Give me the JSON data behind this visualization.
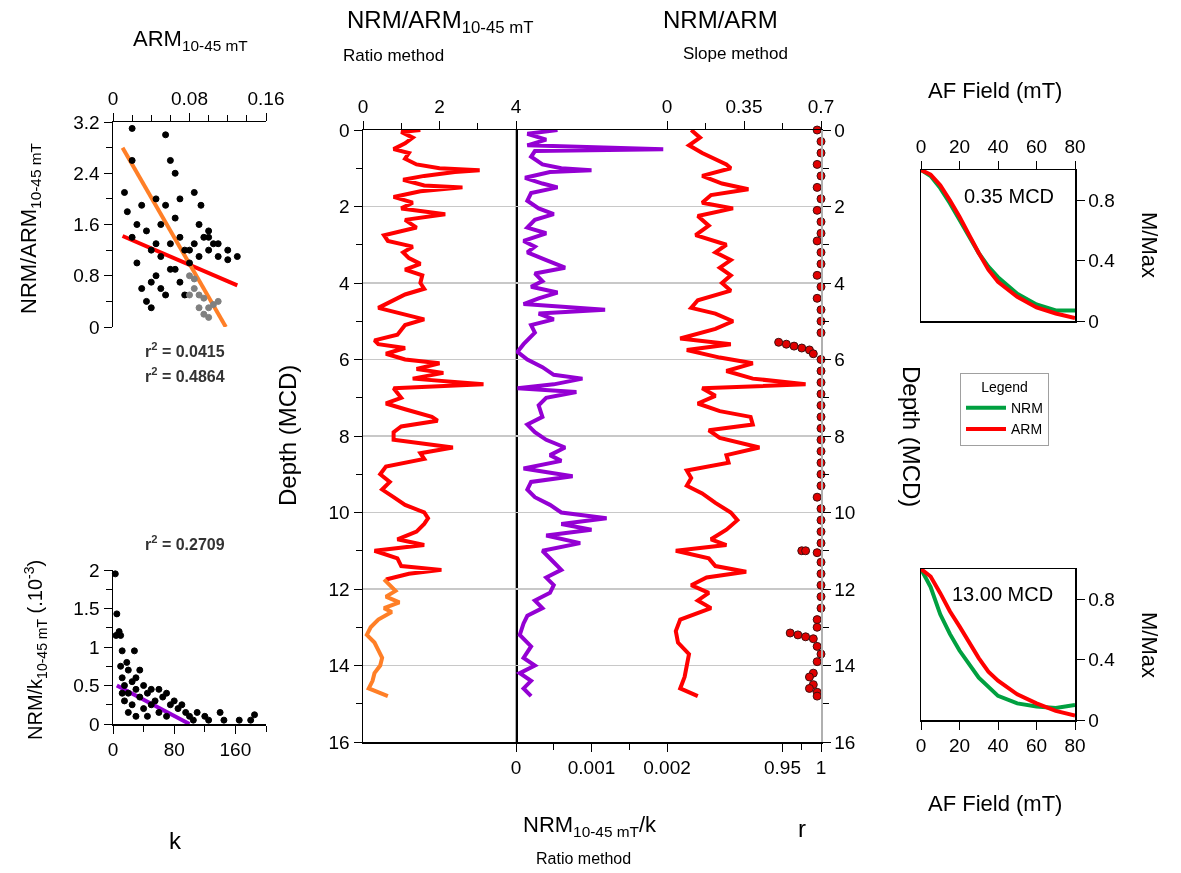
{
  "chart_data": [
    {
      "type": "scatter",
      "xlabel": "ARM$_{10-45 mT}$",
      "ylabel": "NRM/ARM$_{10-45 mT}$",
      "xlim": [
        0,
        0.16
      ],
      "xticks": [
        0,
        {
          "value": 0.02,
          "label": null
        },
        {
          "value": 0.04,
          "label": null
        },
        {
          "value": 0.06,
          "label": null
        },
        0.08,
        {
          "value": 0.1,
          "label": null
        },
        {
          "value": 0.12,
          "label": null
        },
        {
          "value": 0.14,
          "label": null
        },
        0.16
      ],
      "ylim": [
        0,
        3.2
      ],
      "yticks": [
        0,
        {
          "value": 0.4,
          "label": null
        },
        0.8,
        {
          "value": 1.2,
          "label": null
        },
        1.6,
        {
          "value": 2,
          "label": null
        },
        2.4,
        {
          "value": 2.8,
          "label": null
        },
        3.2
      ],
      "annotations": [
        "r$^{2}$ = 0.0415",
        "r$^{2}$ = 0.4864"
      ],
      "series": [
        {
          "marker": "circle",
          "color": "#000000",
          "x": [
            0.012,
            0.015,
            0.02,
            0.02,
            0.025,
            0.03,
            0.035,
            0.04,
            0.04,
            0.045,
            0.045,
            0.05,
            0.05,
            0.055,
            0.055,
            0.06,
            0.06,
            0.065,
            0.065,
            0.07,
            0.07,
            0.07,
            0.075,
            0.075,
            0.08,
            0.085,
            0.09,
            0.09,
            0.095,
            0.1,
            0.1,
            0.105,
            0.11,
            0.12,
            0.13,
            0.085,
            0.02,
            0.03,
            0.035,
            0.04,
            0.06,
            0.05,
            0.065,
            0.055,
            0.08,
            0.092,
            0.1,
            0.025,
            0.045,
            0.11,
            0.12
          ],
          "values": [
            2.1,
            1.8,
            3.1,
            1.4,
            1.0,
            0.6,
            0.4,
            0.3,
            1.2,
            2.0,
            0.8,
            1.6,
            1.1,
            0.5,
            3.0,
            2.6,
            1.3,
            2.4,
            0.9,
            2.0,
            1.4,
            0.7,
            1.2,
            0.5,
            1.0,
            1.3,
            1.6,
            1.1,
            1.4,
            1.5,
            1.2,
            1.3,
            1.1,
            1.05,
            1.1,
            2.1,
            2.6,
            1.9,
            1.5,
            0.7,
            0.9,
            0.6,
            1.7,
            1.9,
            1.2,
            1.9,
            1.4,
            1.6,
            1.3,
            1.3,
            1.2
          ]
        },
        {
          "marker": "circle",
          "color": "#808080",
          "x": [
            0.08,
            0.085,
            0.08,
            0.09,
            0.09,
            0.095,
            0.1,
            0.1,
            0.105,
            0.11,
            0.085,
            0.095
          ],
          "values": [
            0.8,
            0.6,
            0.5,
            0.5,
            0.3,
            0.2,
            0.3,
            0.15,
            0.35,
            0.4,
            0.75,
            0.45
          ]
        },
        {
          "type": "line",
          "color": "#ff0000",
          "x": [
            0.01,
            0.13
          ],
          "values": [
            1.42,
            0.65
          ]
        },
        {
          "type": "line",
          "color": "#ff7f27",
          "x": [
            0.01,
            0.118
          ],
          "values": [
            2.8,
            0
          ]
        }
      ]
    },
    {
      "type": "scatter",
      "xlabel": "k",
      "ylabel": "NRM/k$_{10-45 mT}$ (.10$^{-3}$)",
      "xlim": [
        0,
        200
      ],
      "xticks": [
        0,
        {
          "value": 40,
          "label": null
        },
        80,
        {
          "value": 120,
          "label": null
        },
        160,
        {
          "value": 200,
          "label": null
        }
      ],
      "ylim": [
        0,
        2
      ],
      "yticks": [
        0,
        {
          "value": 0.25,
          "label": null
        },
        0.5,
        {
          "value": 0.75,
          "label": null
        },
        1,
        {
          "value": 1.25,
          "label": null
        },
        1.5,
        {
          "value": 1.75,
          "label": null
        },
        2
      ],
      "annotations": [
        "r$^{2}$ = 0.2709"
      ],
      "series": [
        {
          "marker": "circle",
          "color": "#000000",
          "x": [
            3,
            5,
            4,
            8,
            10,
            12,
            10,
            12,
            15,
            15,
            20,
            20,
            20,
            25,
            25,
            28,
            30,
            30,
            35,
            35,
            40,
            40,
            45,
            45,
            50,
            50,
            55,
            60,
            60,
            65,
            70,
            70,
            75,
            80,
            85,
            90,
            95,
            100,
            105,
            110,
            120,
            125,
            140,
            145,
            165,
            180,
            185,
            12,
            18,
            30
          ],
          "values": [
            1.95,
            1.43,
            1.15,
            1.2,
            1.15,
            0.95,
            0.75,
            0.6,
            0.5,
            0.3,
            0.7,
            0.4,
            0.15,
            0.55,
            0.25,
            0.95,
            0.6,
            0.1,
            0.7,
            0.35,
            0.5,
            0.2,
            0.4,
            0.1,
            0.45,
            0.25,
            0.3,
            0.45,
            0.15,
            0.35,
            0.4,
            0.1,
            0.25,
            0.3,
            0.2,
            0.25,
            0.15,
            0.1,
            0.05,
            0.15,
            0.1,
            0.05,
            0.15,
            0.05,
            0.05,
            0.05,
            0.12,
            0.4,
            0.8,
            0.45
          ]
        },
        {
          "type": "line",
          "color": "#9400d3",
          "x": [
            5,
            100
          ],
          "values": [
            0.5,
            0
          ]
        }
      ]
    },
    {
      "type": "line",
      "xlabel": "NRM/ARM$_{10-45 mT}$",
      "ylabel": "Depth (MCD)",
      "xlim": [
        0,
        4
      ],
      "xticks": [
        0,
        {
          "value": 1,
          "label": null
        },
        2,
        {
          "value": 3,
          "label": null
        },
        4
      ],
      "ylim": [
        16,
        0
      ],
      "yticks": [
        0,
        {
          "value": 1,
          "label": null
        },
        2,
        {
          "value": 3,
          "label": null
        },
        4,
        {
          "value": 5,
          "label": null
        },
        6,
        {
          "value": 7,
          "label": null
        },
        8,
        {
          "value": 9,
          "label": null
        },
        10,
        {
          "value": 11,
          "label": null
        },
        12,
        {
          "value": 13,
          "label": null
        },
        14,
        {
          "value": 15,
          "label": null
        },
        16
      ],
      "grid": "y",
      "annotations": [
        "Ratio method"
      ],
      "series": [
        {
          "color": "#ff0000",
          "x": [
            1.5,
            1.0,
            1.3,
            1.1,
            0.8,
            1.2,
            1.1,
            1.4,
            2.0,
            3.05,
            2.4,
            1.6,
            1.05,
            1.6,
            2.6,
            1.5,
            0.8,
            1.3,
            1.0,
            2.15,
            1.1,
            1.4,
            0.55,
            0.65,
            1.3,
            1.05,
            1.2,
            1.5,
            1.1,
            1.55,
            1.5,
            1.6,
            1.1,
            0.7,
            0.4,
            1.0,
            1.6,
            1.1,
            0.9,
            0.3,
            0.4,
            1.1,
            0.6,
            1.1,
            2.0,
            1.4,
            2.1,
            1.3,
            3.15,
            0.8,
            1.0,
            0.6,
            1.1,
            1.8,
            1.95,
            1.0,
            0.8,
            0.8,
            2.35,
            1.5,
            1.6,
            0.6,
            0.45,
            0.7,
            0.5,
            0.8,
            1.1,
            1.6,
            1.7,
            1.6,
            1.4,
            0.9,
            1.6,
            0.3,
            0.9,
            1.0,
            2.05,
            1.2,
            0.6
          ],
          "values": [
            0,
            0.05,
            0.2,
            0.35,
            0.5,
            0.6,
            0.75,
            0.9,
            1.0,
            1.05,
            1.1,
            1.2,
            1.3,
            1.45,
            1.5,
            1.6,
            1.75,
            1.9,
            2.05,
            2.2,
            2.35,
            2.55,
            2.75,
            2.9,
            3.05,
            3.2,
            3.35,
            3.5,
            3.65,
            3.8,
            4.0,
            4.15,
            4.3,
            4.5,
            4.65,
            4.8,
            4.95,
            5.1,
            5.35,
            5.5,
            5.6,
            5.7,
            5.85,
            6.0,
            6.1,
            6.25,
            6.35,
            6.5,
            6.65,
            6.75,
            7.0,
            7.15,
            7.3,
            7.5,
            7.6,
            7.75,
            7.9,
            8.1,
            8.3,
            8.45,
            8.6,
            8.8,
            9.0,
            9.2,
            9.4,
            9.6,
            9.8,
            10.0,
            10.15,
            10.3,
            10.5,
            10.7,
            10.85,
            11.0,
            11.2,
            11.4,
            11.5,
            11.6,
            11.75
          ]
        },
        {
          "color": "#ff7f27",
          "x": [
            0.55,
            0.7,
            0.85,
            0.6,
            0.95,
            0.55,
            0.75,
            0.4,
            0.2,
            0.1,
            0.3,
            0.4,
            0.5,
            0.45,
            0.3,
            0.25,
            0.15,
            0.65
          ],
          "values": [
            11.75,
            11.9,
            12.05,
            12.2,
            12.35,
            12.5,
            12.6,
            12.8,
            13.0,
            13.2,
            13.4,
            13.6,
            13.8,
            14.0,
            14.2,
            14.4,
            14.6,
            14.8
          ]
        }
      ]
    },
    {
      "type": "line",
      "xlabel": "NRM$_{10-45 mT}$/k",
      "xlim": [
        0,
        0.002
      ],
      "xticks": [
        0,
        {
          "value": 0.0005,
          "label": null
        },
        0.001,
        {
          "value": 0.0015,
          "label": null
        },
        0.002
      ],
      "ylim": [
        16,
        0
      ],
      "yticks": [
        0,
        2,
        4,
        6,
        8,
        10,
        12,
        14,
        16
      ],
      "tick_labels": "x",
      "grid": "y",
      "annotations": [
        "Ratio method"
      ],
      "series": [
        {
          "color": "#9400d3",
          "x": [
            0.00055,
            0.00015,
            0.0004,
            0.00015,
            0.00195,
            0.00025,
            0.0002,
            0.00035,
            0.0006,
            0.001,
            0.00045,
            0.00012,
            0.00035,
            0.00055,
            0.0002,
            0.00015,
            0.0003,
            0.0005,
            0.00025,
            0.00015,
            0.0004,
            0.0001,
            0.00025,
            0.00015,
            0.0004,
            0.00065,
            0.00025,
            0.00035,
            0.0002,
            0.00055,
            0.0003,
            0.0001,
            0.00118,
            0.0003,
            0.0005,
            0.0002,
            0.00025,
            0.0001,
            2e-05,
            0.00015,
            0.00035,
            0.0005,
            0.00088,
            0.0005,
            2e-05,
            0.0008,
            0.0004,
            0.0003,
            0.00035,
            0.00015,
            0.00025,
            0.0004,
            0.00065,
            0.00045,
            0.0006,
            0.0001,
            0.00075,
            0.0002,
            0.00015,
            0.00025,
            0.00045,
            0.0006,
            0.0012,
            0.0006,
            0.001,
            0.0004,
            0.00085,
            0.00035,
            0.0005,
            0.0006,
            0.0004,
            0.0005,
            0.00045,
            0.00025,
            0.00035,
            0.00015,
            0.0001,
            5e-05,
            0.0002,
            0.0001,
            0.00025,
            5e-05,
            0.0002,
            0.0001,
            0.0002
          ],
          "values": [
            0,
            0.1,
            0.25,
            0.4,
            0.5,
            0.55,
            0.7,
            0.9,
            1.0,
            1.05,
            1.1,
            1.25,
            1.4,
            1.5,
            1.65,
            1.85,
            2.05,
            2.2,
            2.35,
            2.55,
            2.7,
            2.9,
            3.05,
            3.2,
            3.4,
            3.6,
            3.75,
            3.95,
            4.1,
            4.25,
            4.4,
            4.55,
            4.7,
            4.8,
            4.95,
            5.1,
            5.3,
            5.6,
            5.8,
            6.0,
            6.2,
            6.4,
            6.5,
            6.65,
            6.75,
            6.85,
            7.0,
            7.2,
            7.5,
            7.7,
            7.9,
            8.1,
            8.3,
            8.5,
            8.65,
            8.85,
            9.05,
            9.2,
            9.4,
            9.6,
            9.8,
            10.0,
            10.15,
            10.3,
            10.45,
            10.6,
            10.8,
            11.0,
            11.3,
            11.5,
            11.7,
            11.9,
            12.1,
            12.3,
            12.5,
            12.7,
            12.9,
            13.2,
            13.5,
            13.8,
            14.0,
            14.2,
            14.4,
            14.6,
            14.8
          ]
        }
      ]
    },
    {
      "type": "line",
      "xlabel": "r",
      "x2label": "NRM/ARM",
      "ylabel": "Depth (MCD)",
      "xlim": [
        0.8,
        1
      ],
      "xticks": [
        0.95,
        {
          "value": 0.975,
          "label": null
        },
        1
      ],
      "x2lim": [
        0,
        0.7
      ],
      "x2ticks": [
        0,
        {
          "value": 0.175,
          "label": null
        },
        0.35,
        {
          "value": 0.525,
          "label": null
        },
        0.7
      ],
      "ylim": [
        16,
        0
      ],
      "yticks": [
        0,
        {
          "value": 1,
          "label": null
        },
        2,
        {
          "value": 3,
          "label": null
        },
        4,
        {
          "value": 5,
          "label": null
        },
        6,
        {
          "value": 7,
          "label": null
        },
        8,
        {
          "value": 9,
          "label": null
        },
        10,
        {
          "value": 11,
          "label": null
        },
        12,
        {
          "value": 13,
          "label": null
        },
        14,
        {
          "value": 15,
          "label": null
        },
        16
      ],
      "grid": "y",
      "annotations": [
        "Slope method"
      ],
      "series": [
        {
          "axis": "x2",
          "color": "#ff0000",
          "x": [
            0.11,
            0.15,
            0.1,
            0.16,
            0.27,
            0.29,
            0.16,
            0.25,
            0.37,
            0.2,
            0.16,
            0.3,
            0.14,
            0.19,
            0.13,
            0.27,
            0.22,
            0.29,
            0.24,
            0.29,
            0.25,
            0.29,
            0.14,
            0.11,
            0.22,
            0.3,
            0.22,
            0.06,
            0.29,
            0.09,
            0.24,
            0.39,
            0.27,
            0.39,
            0.63,
            0.16,
            0.22,
            0.14,
            0.24,
            0.38,
            0.39,
            0.19,
            0.24,
            0.42,
            0.27,
            0.28,
            0.09,
            0.11,
            0.09,
            0.16,
            0.22,
            0.29,
            0.32,
            0.27,
            0.2,
            0.27,
            0.04,
            0.19,
            0.22,
            0.36,
            0.18,
            0.11,
            0.19,
            0.14,
            0.2,
            0.06,
            0.04,
            0.05,
            0.1,
            0.09,
            0.08,
            0.06,
            0.14
          ],
          "values": [
            0,
            0.2,
            0.4,
            0.6,
            0.9,
            1.0,
            1.2,
            1.4,
            1.55,
            1.7,
            1.9,
            2.05,
            2.25,
            2.5,
            2.75,
            3.0,
            3.2,
            3.4,
            3.6,
            3.8,
            4.0,
            4.2,
            4.45,
            4.65,
            4.8,
            5.0,
            5.2,
            5.45,
            5.6,
            5.75,
            5.95,
            6.1,
            6.3,
            6.5,
            6.65,
            6.75,
            6.95,
            7.15,
            7.35,
            7.5,
            7.7,
            7.85,
            8.05,
            8.3,
            8.5,
            8.7,
            8.9,
            9.1,
            9.3,
            9.5,
            9.75,
            10.0,
            10.2,
            10.45,
            10.7,
            10.85,
            11.0,
            11.2,
            11.4,
            11.55,
            11.7,
            11.9,
            12.1,
            12.3,
            12.5,
            12.8,
            13.1,
            13.4,
            13.7,
            14.0,
            14.3,
            14.6,
            14.8
          ]
        },
        {
          "type": "scatter",
          "marker": "circle",
          "color": "#e00000",
          "x": [
            0.995,
            1,
            1,
            0.995,
            1,
            0.995,
            1,
            0.995,
            1,
            1,
            0.995,
            1,
            1,
            0.995,
            1,
            0.995,
            1,
            1,
            1,
            0.945,
            0.955,
            0.965,
            0.975,
            0.985,
            0.99,
            1,
            1,
            1,
            1,
            1,
            1,
            1,
            1,
            1,
            1,
            1,
            1,
            0.995,
            1,
            1,
            1,
            1,
            0.975,
            0.98,
            0.995,
            1,
            1,
            1,
            1,
            1,
            0.995,
            0.995,
            0.96,
            0.97,
            0.98,
            0.99,
            0.995,
            1,
            0.995,
            0.99,
            0.985,
            0.99,
            0.985,
            0.995,
            0.995
          ],
          "values": [
            0,
            0.3,
            0.6,
            0.9,
            1.2,
            1.5,
            1.8,
            2.1,
            2.4,
            2.7,
            2.9,
            3.2,
            3.5,
            3.8,
            4.1,
            4.4,
            4.7,
            5.0,
            5.3,
            5.55,
            5.6,
            5.65,
            5.7,
            5.75,
            5.85,
            6.0,
            6.3,
            6.6,
            6.9,
            7.2,
            7.5,
            7.8,
            8.1,
            8.4,
            8.7,
            9.0,
            9.3,
            9.6,
            9.9,
            10.2,
            10.5,
            10.8,
            11.0,
            11.0,
            11.05,
            11.3,
            11.6,
            11.9,
            12.2,
            12.5,
            12.8,
            13.0,
            13.15,
            13.2,
            13.25,
            13.3,
            13.5,
            13.7,
            13.9,
            14.2,
            14.3,
            14.5,
            14.6,
            14.7,
            14.8
          ]
        }
      ]
    },
    {
      "type": "line",
      "xlabel": "AF Field (mT)",
      "ylabel": "M/Max",
      "xlim": [
        0,
        80
      ],
      "xticks": [
        0,
        20,
        40,
        60,
        80
      ],
      "ylim": [
        0,
        1
      ],
      "yticks": [
        0,
        0.4,
        0.8
      ],
      "legend": "bottom",
      "legend_title": "Legend",
      "annotations": [
        "0.35 MCD"
      ],
      "series": [
        {
          "name": "NRM",
          "color": "#00a040",
          "x": [
            0,
            5,
            10,
            15,
            20,
            25,
            30,
            35,
            40,
            50,
            60,
            70,
            80
          ],
          "values": [
            1,
            0.96,
            0.88,
            0.78,
            0.67,
            0.56,
            0.45,
            0.36,
            0.29,
            0.18,
            0.11,
            0.07,
            0.07
          ]
        },
        {
          "name": "ARM",
          "color": "#ff0000",
          "x": [
            0,
            5,
            10,
            15,
            20,
            25,
            30,
            35,
            40,
            50,
            60,
            70,
            80
          ],
          "values": [
            1,
            0.97,
            0.9,
            0.8,
            0.69,
            0.57,
            0.45,
            0.34,
            0.26,
            0.16,
            0.09,
            0.05,
            0.02
          ]
        }
      ]
    },
    {
      "type": "line",
      "xlabel": "AF Field (mT)",
      "ylabel": "M/Max",
      "xlim": [
        0,
        80
      ],
      "xticks": [
        0,
        20,
        40,
        60,
        80
      ],
      "ylim": [
        0,
        1
      ],
      "yticks": [
        0,
        0.4,
        0.8
      ],
      "annotations": [
        "13.00 MCD"
      ],
      "series": [
        {
          "color": "#00a040",
          "x": [
            0,
            5,
            10,
            15,
            20,
            30,
            40,
            50,
            60,
            70,
            80
          ],
          "values": [
            1,
            0.88,
            0.7,
            0.57,
            0.46,
            0.28,
            0.16,
            0.11,
            0.09,
            0.08,
            0.1
          ]
        },
        {
          "color": "#ff0000",
          "x": [
            0,
            5,
            10,
            15,
            20,
            30,
            35,
            40,
            50,
            60,
            70,
            80
          ],
          "values": [
            1,
            0.95,
            0.84,
            0.72,
            0.62,
            0.41,
            0.32,
            0.26,
            0.17,
            0.11,
            0.06,
            0.03
          ]
        }
      ]
    }
  ]
}
